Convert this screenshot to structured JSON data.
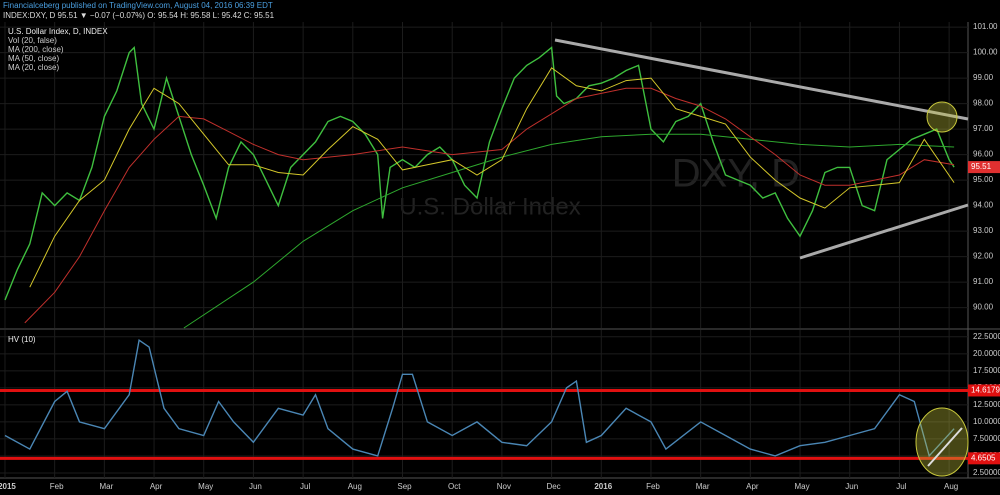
{
  "header": {
    "publisher": "Financialceberg published on TradingView.com, August 04, 2016 06:39 EDT",
    "quote": "INDEX:DXY, D  95.51 ▼ −0.07 (−0.07%)  O: 95.54  H: 95.58  L: 95.42  C: 95.51",
    "watermark": "DXY, D",
    "watermark_sub": "U.S. Dollar Index"
  },
  "chart_data": [
    {
      "type": "line",
      "title": "U.S. Dollar Index, D, INDEX",
      "legend_extra": [
        "Vol (20, false)"
      ],
      "xlim": [
        -0.1,
        19.38
      ],
      "ylim": [
        89.2,
        101.2
      ],
      "xticks": [
        {
          "value": 0,
          "label": "2015"
        },
        {
          "value": 1,
          "label": "Feb"
        },
        {
          "value": 2,
          "label": "Mar"
        },
        {
          "value": 3,
          "label": "Apr"
        },
        {
          "value": 4,
          "label": "May"
        },
        {
          "value": 5,
          "label": "Jun"
        },
        {
          "value": 6,
          "label": "Jul"
        },
        {
          "value": 7,
          "label": "Aug"
        },
        {
          "value": 8,
          "label": "Sep"
        },
        {
          "value": 9,
          "label": "Oct"
        },
        {
          "value": 10,
          "label": "Nov"
        },
        {
          "value": 11,
          "label": "Dec"
        },
        {
          "value": 12,
          "label": "2016"
        },
        {
          "value": 13,
          "label": "Feb"
        },
        {
          "value": 14,
          "label": "Mar"
        },
        {
          "value": 15,
          "label": "Apr"
        },
        {
          "value": 16,
          "label": "May"
        },
        {
          "value": 17,
          "label": "Jun"
        },
        {
          "value": 18,
          "label": "Jul"
        },
        {
          "value": 19,
          "label": "Aug"
        }
      ],
      "yticks": [
        {
          "value": 90,
          "label": "90.00"
        },
        {
          "value": 91,
          "label": "91.00"
        },
        {
          "value": 92,
          "label": "92.00"
        },
        {
          "value": 93,
          "label": "93.00"
        },
        {
          "value": 94,
          "label": "94.00"
        },
        {
          "value": 95,
          "label": "95.00"
        },
        {
          "value": 96,
          "label": "96.00"
        },
        {
          "value": 97,
          "label": "97.00"
        },
        {
          "value": 98,
          "label": "98.00"
        },
        {
          "value": 99,
          "label": "99.00"
        },
        {
          "value": 100,
          "label": "100.00"
        },
        {
          "value": 101,
          "label": "101.00"
        }
      ],
      "grid": true,
      "last_value": {
        "value": 95.51,
        "label": "95.51",
        "color": "#e03030"
      },
      "series": [
        {
          "name": "U.S. Dollar Index, D, INDEX",
          "color": "#3fbf3f",
          "x": [
            0,
            0.25,
            0.5,
            0.75,
            1,
            1.25,
            1.5,
            1.75,
            2,
            2.25,
            2.5,
            2.6,
            2.75,
            3,
            3.25,
            3.5,
            3.75,
            4,
            4.25,
            4.5,
            4.75,
            5,
            5.25,
            5.5,
            5.75,
            6,
            6.25,
            6.5,
            6.75,
            7,
            7.25,
            7.5,
            7.6,
            7.75,
            8,
            8.25,
            8.5,
            8.75,
            9,
            9.25,
            9.5,
            9.75,
            10,
            10.25,
            10.5,
            10.75,
            11,
            11.1,
            11.25,
            11.5,
            11.75,
            12,
            12.25,
            12.5,
            12.75,
            13,
            13.25,
            13.5,
            13.75,
            14,
            14.25,
            14.5,
            14.75,
            15,
            15.25,
            15.5,
            15.75,
            16,
            16.25,
            16.5,
            16.75,
            17,
            17.25,
            17.5,
            17.75,
            18,
            18.25,
            18.5,
            18.75,
            19,
            19.1
          ],
          "values": [
            90.3,
            91.5,
            92.5,
            94.5,
            94.0,
            94.5,
            94.2,
            95.5,
            97.5,
            98.5,
            100.0,
            100.2,
            98.0,
            97.0,
            99.0,
            97.5,
            96.0,
            94.8,
            93.5,
            95.5,
            96.5,
            96.0,
            95.0,
            94.0,
            95.5,
            96.0,
            96.5,
            97.3,
            97.5,
            97.3,
            96.8,
            96.0,
            93.5,
            95.5,
            95.8,
            95.5,
            96.0,
            96.3,
            95.8,
            94.8,
            94.3,
            96.5,
            97.8,
            99.0,
            99.5,
            99.8,
            100.2,
            98.3,
            98.0,
            98.2,
            98.7,
            98.8,
            99.0,
            99.3,
            99.5,
            97.0,
            96.5,
            97.3,
            97.5,
            98.0,
            96.5,
            95.2,
            95.0,
            94.8,
            94.3,
            94.5,
            93.5,
            92.8,
            93.8,
            95.3,
            95.5,
            95.5,
            94.0,
            93.8,
            95.8,
            96.2,
            96.6,
            96.8,
            97.0,
            95.8,
            95.51
          ]
        },
        {
          "name": "MA (200, close)",
          "color": "#2ea82e",
          "x": [
            3.6,
            5,
            6,
            7,
            8,
            9,
            10,
            11,
            12,
            13,
            14,
            15,
            16,
            17,
            18,
            19.1
          ],
          "values": [
            89.2,
            91.0,
            92.6,
            93.8,
            94.7,
            95.3,
            95.9,
            96.4,
            96.7,
            96.8,
            96.8,
            96.6,
            96.4,
            96.3,
            96.4,
            96.3
          ]
        },
        {
          "name": "MA (50, close)",
          "color": "#c0302c",
          "x": [
            0.4,
            1,
            1.5,
            2,
            2.5,
            3,
            3.5,
            4,
            4.5,
            5,
            5.5,
            6,
            7,
            8,
            9,
            10,
            10.5,
            11,
            11.5,
            12,
            12.5,
            13,
            13.5,
            14,
            14.5,
            15,
            15.5,
            16,
            16.5,
            17,
            17.5,
            18,
            18.5,
            19.1
          ],
          "values": [
            89.4,
            90.6,
            92.0,
            93.8,
            95.5,
            96.6,
            97.5,
            97.4,
            96.9,
            96.4,
            96.0,
            95.8,
            96.0,
            96.3,
            96.0,
            96.2,
            97.0,
            97.6,
            98.2,
            98.4,
            98.6,
            98.6,
            98.2,
            97.9,
            97.4,
            96.7,
            96.0,
            95.2,
            94.8,
            94.8,
            95.0,
            95.2,
            95.8,
            95.6
          ]
        },
        {
          "name": "MA (20, close)",
          "color": "#d4c72a",
          "x": [
            0.5,
            1,
            1.5,
            2,
            2.5,
            3,
            3.5,
            4,
            4.5,
            5,
            5.5,
            6,
            6.5,
            7,
            7.5,
            8,
            8.5,
            9,
            9.5,
            10,
            10.5,
            11,
            11.5,
            12,
            12.5,
            13,
            13.5,
            14,
            14.5,
            15,
            15.5,
            16,
            16.5,
            17,
            17.5,
            18,
            18.5,
            19.1
          ],
          "values": [
            90.8,
            92.8,
            94.2,
            95.0,
            97.0,
            98.6,
            98.0,
            96.8,
            95.6,
            95.6,
            95.3,
            95.2,
            96.2,
            97.1,
            96.6,
            95.4,
            95.6,
            95.8,
            95.2,
            95.8,
            97.8,
            99.4,
            98.7,
            98.5,
            98.9,
            99.0,
            97.8,
            97.5,
            97.2,
            95.9,
            95.0,
            94.3,
            93.9,
            94.7,
            94.8,
            94.9,
            96.6,
            94.9
          ]
        }
      ]
    },
    {
      "type": "line",
      "title": "HV (10)",
      "xlim": [
        -0.1,
        19.38
      ],
      "ylim": [
        1.76,
        23.5
      ],
      "yticks": [
        {
          "value": 2.5,
          "label": "2.50000"
        },
        {
          "value": 5,
          "label": "5.00000"
        },
        {
          "value": 7.5,
          "label": "7.50000"
        },
        {
          "value": 10,
          "label": "10.0000"
        },
        {
          "value": 12.5,
          "label": "12.5000"
        },
        {
          "value": 15,
          "label": "15.0000"
        },
        {
          "value": 17.5,
          "label": "17.5000"
        },
        {
          "value": 20,
          "label": "20.0000"
        },
        {
          "value": 22.5,
          "label": "22.5000"
        }
      ],
      "grid": true,
      "levels": [
        {
          "value": 14.6179,
          "label": "14.6179",
          "color": "#e01010"
        },
        {
          "value": 4.6505,
          "label": "4.6505",
          "color": "#e01010"
        }
      ],
      "series": [
        {
          "name": "HV (10)",
          "color": "#4a86b4",
          "x": [
            0,
            0.5,
            1,
            1.25,
            1.5,
            2,
            2.5,
            2.7,
            2.9,
            3.2,
            3.5,
            4,
            4.3,
            4.6,
            5,
            5.5,
            6,
            6.25,
            6.5,
            7,
            7.5,
            7.8,
            8,
            8.2,
            8.5,
            9,
            9.5,
            10,
            10.5,
            11,
            11.3,
            11.5,
            11.7,
            12,
            12.5,
            13,
            13.3,
            14,
            14.5,
            15,
            15.5,
            16,
            16.5,
            17,
            17.5,
            17.8,
            18,
            18.3,
            18.6,
            19.1
          ],
          "values": [
            8,
            6,
            13,
            14.5,
            10,
            9,
            14,
            22,
            21,
            12,
            9,
            8,
            13,
            10,
            7,
            12,
            11,
            14,
            9,
            6,
            5,
            12,
            17,
            17,
            10,
            8,
            10,
            7,
            6.5,
            10,
            15,
            16,
            7,
            8,
            12,
            10,
            6,
            10,
            8,
            6,
            5,
            6.5,
            7,
            8,
            9,
            12,
            14,
            13,
            5,
            9
          ]
        }
      ]
    }
  ]
}
